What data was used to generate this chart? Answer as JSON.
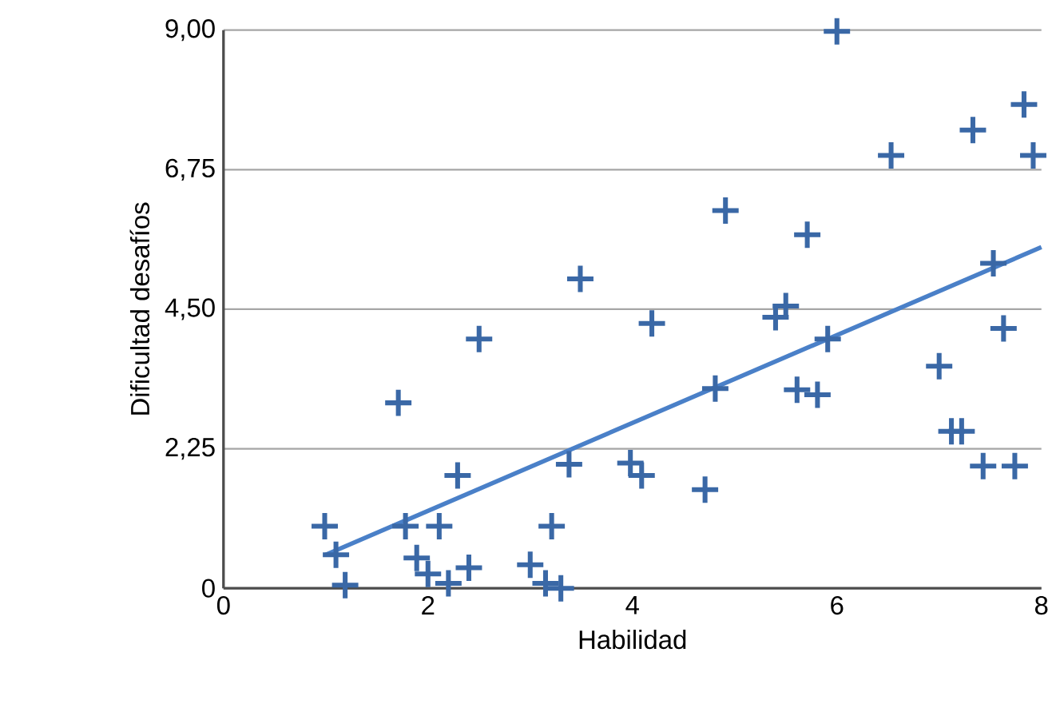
{
  "chart_data": {
    "type": "scatter",
    "xlabel": "Habilidad",
    "ylabel": "Dificultad desafíos",
    "xlim": [
      0,
      8
    ],
    "xticks": [
      0,
      2,
      4,
      6,
      8
    ],
    "ylim": [
      0,
      9
    ],
    "yticks": [
      {
        "value": 0,
        "label": "0"
      },
      {
        "value": 2.25,
        "label": "2,25"
      },
      {
        "value": 4.5,
        "label": "4,50"
      },
      {
        "value": 6.75,
        "label": "6,75"
      },
      {
        "value": 9,
        "label": "9,00"
      }
    ],
    "grid": "y",
    "marker": "cross",
    "series": [
      {
        "color": "#3a68a6",
        "x": [
          0.99,
          1.1,
          1.19,
          1.71,
          1.78,
          1.89,
          2.11,
          2.0,
          2.2,
          2.29,
          2.4,
          2.5,
          3.0,
          3.21,
          3.15,
          3.3,
          3.38,
          3.49,
          3.98,
          4.09,
          4.19,
          4.71,
          4.81,
          4.91,
          5.4,
          5.5,
          5.71,
          5.61,
          5.81,
          5.91,
          6.0,
          6.53,
          7.0,
          7.12,
          7.22,
          7.33,
          7.43,
          7.53,
          7.63,
          7.74,
          7.83,
          7.92
        ],
        "values": [
          1.0,
          0.54,
          0.05,
          2.99,
          1.0,
          0.49,
          1.0,
          0.23,
          0.08,
          1.82,
          0.33,
          4.02,
          0.38,
          1.0,
          0.08,
          0.0,
          2.0,
          4.99,
          2.02,
          1.82,
          4.27,
          1.59,
          3.22,
          6.09,
          4.37,
          4.55,
          5.7,
          3.2,
          3.12,
          4.02,
          8.98,
          6.98,
          3.58,
          2.53,
          2.53,
          7.39,
          1.97,
          5.24,
          4.19,
          1.97,
          7.8,
          6.98
        ]
      },
      {
        "type": "line",
        "color": "#4a80c8",
        "marker": "none",
        "x": [
          1.0,
          8.0
        ],
        "values": [
          0.54,
          5.5
        ]
      }
    ]
  }
}
